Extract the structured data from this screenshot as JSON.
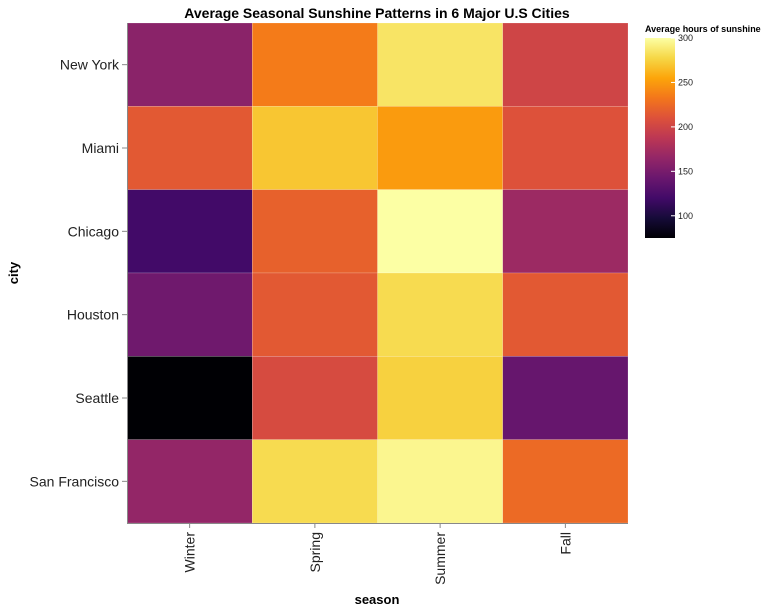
{
  "chart_data": {
    "type": "heatmap",
    "title": "Average Seasonal Sunshine Patterns in 6 Major U.S Cities",
    "xlabel": "season",
    "ylabel": "city",
    "x_categories": [
      "Winter",
      "Spring",
      "Summer",
      "Fall"
    ],
    "y_categories": [
      "New York",
      "Miami",
      "Chicago",
      "Houston",
      "Seattle",
      "San Francisco"
    ],
    "values": [
      [
        160,
        235,
        285,
        200
      ],
      [
        215,
        270,
        250,
        210
      ],
      [
        120,
        220,
        300,
        170
      ],
      [
        145,
        215,
        280,
        215
      ],
      [
        75,
        205,
        275,
        140
      ],
      [
        165,
        280,
        295,
        225
      ]
    ],
    "color_scale": {
      "scheme": "inferno",
      "domain": [
        75,
        300
      ],
      "legend_title": "Average hours of sunshine",
      "legend_ticks": [
        100,
        150,
        200,
        250,
        300
      ],
      "legend_placement": "top-right"
    }
  }
}
